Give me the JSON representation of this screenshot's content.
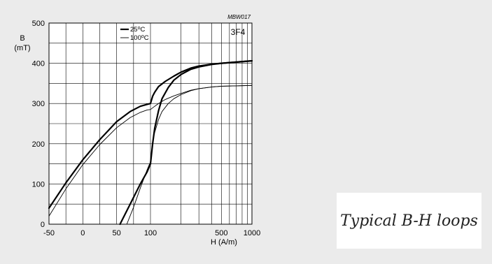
{
  "chart_data": {
    "type": "line",
    "title": "",
    "figure_code": "MBW017",
    "material": "3F4",
    "ylabel": "B",
    "yunit": "(mT)",
    "xlabel": "H  (A/m)",
    "xscale": "linear from -50 to 100, logarithmic from 100 to 1000",
    "xlim": [
      -50,
      1000
    ],
    "ylim": [
      0,
      500
    ],
    "x_ticks": [
      "-50",
      "0",
      "50",
      "100",
      "500",
      "1000"
    ],
    "y_ticks": [
      "0",
      "100",
      "200",
      "300",
      "400",
      "500"
    ],
    "grid": true,
    "legend_position": "top-center",
    "legend": [
      {
        "label": "25",
        "sup": "o",
        "unit": "C",
        "style": "thick"
      },
      {
        "label": "100",
        "sup": "o",
        "unit": "C",
        "style": "thin"
      }
    ],
    "series": [
      {
        "name": "25°C",
        "temperature": "25°C",
        "style": "thick",
        "x": [
          -50,
          -25,
          0,
          25,
          50,
          70,
          85,
          95,
          100,
          105,
          110,
          120,
          140,
          170,
          200,
          250,
          300,
          400,
          500,
          700,
          1000
        ],
        "y": [
          40,
          103,
          160,
          210,
          255,
          280,
          293,
          298,
          300,
          318,
          328,
          342,
          355,
          368,
          378,
          388,
          393,
          398,
          400,
          403,
          406
        ]
      },
      {
        "name": "25°C",
        "temperature": "25°C",
        "style": "thick",
        "x": [
          55,
          70,
          85,
          95,
          100,
          105,
          110,
          120,
          130,
          150,
          170,
          200,
          250,
          300,
          400,
          500,
          700,
          1000
        ],
        "y": [
          0,
          50,
          100,
          130,
          150,
          200,
          238,
          282,
          312,
          340,
          358,
          372,
          385,
          391,
          397,
          400,
          403,
          406
        ]
      },
      {
        "name": "100°C",
        "temperature": "100°C",
        "style": "thin",
        "x": [
          -50,
          -25,
          0,
          25,
          50,
          70,
          85,
          95,
          100,
          110,
          120,
          140,
          170,
          200,
          250,
          300,
          400,
          500,
          700,
          1000
        ],
        "y": [
          20,
          88,
          148,
          198,
          240,
          265,
          278,
          284,
          285,
          293,
          300,
          310,
          319,
          325,
          333,
          337,
          341,
          343,
          344,
          345
        ]
      },
      {
        "name": "100°C",
        "temperature": "100°C",
        "style": "thin",
        "x": [
          65,
          75,
          85,
          95,
          100,
          105,
          110,
          120,
          130,
          150,
          170,
          200,
          250,
          300,
          400,
          500,
          700,
          1000
        ],
        "y": [
          0,
          42,
          90,
          135,
          155,
          205,
          228,
          260,
          280,
          300,
          312,
          322,
          332,
          337,
          341,
          343,
          344,
          345
        ]
      }
    ]
  },
  "caption": "Typical B-H loops"
}
